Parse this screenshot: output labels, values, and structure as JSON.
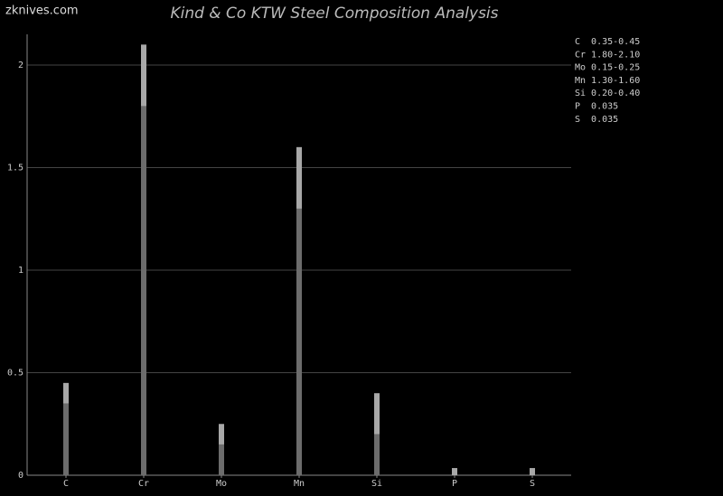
{
  "chart_data": {
    "type": "bar",
    "stacked": true,
    "title": "Kind & Co KTW Steel Composition Analysis",
    "watermark": "zknives.com",
    "categories": [
      "C",
      "Cr",
      "Mo",
      "Mn",
      "Si",
      "P",
      "S"
    ],
    "series": [
      {
        "color": "#6c6c6c",
        "values": [
          0.35,
          1.8,
          0.15,
          1.3,
          0.2,
          null,
          null
        ]
      },
      {
        "color": "#a8a8a8",
        "values": [
          0.1,
          0.3,
          0.1,
          0.3,
          0.2,
          0.035,
          0.035
        ]
      }
    ],
    "ylim": [
      0,
      2.15
    ],
    "yticks": [
      0,
      0.5,
      1,
      1.5,
      2
    ],
    "grid": true,
    "annotations": [
      "C  0.35-0.45",
      "Cr 1.80-2.10",
      "Mo 0.15-0.25",
      "Mn 1.30-1.60",
      "Si 0.20-0.40",
      "P  0.035",
      "S  0.035"
    ]
  }
}
